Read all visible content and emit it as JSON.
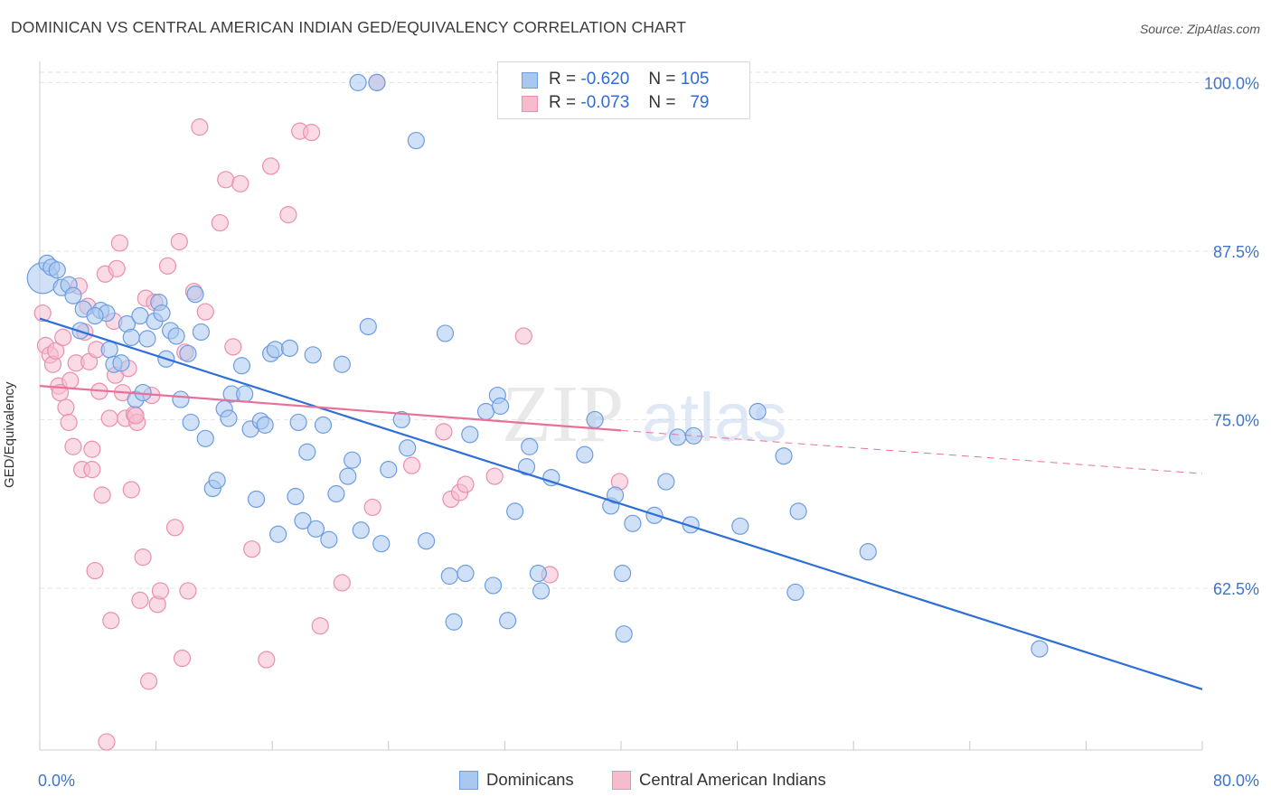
{
  "title": "DOMINICAN VS CENTRAL AMERICAN INDIAN GED/EQUIVALENCY CORRELATION CHART",
  "source": "Source: ZipAtlas.com",
  "watermark": {
    "zip": "ZIP",
    "atlas": "atlas"
  },
  "colors": {
    "dominicans_fill": "#a9c8f0",
    "dominicans_stroke": "#6d9de0",
    "dominicans_line": "#2e6fd6",
    "cai_fill": "#f6bccd",
    "cai_stroke": "#ea8faf",
    "cai_line": "#e8709a",
    "axis_text": "#3f74c8",
    "grid": "#e3e3e3"
  },
  "legend": {
    "rows": [
      {
        "r_label": "R =",
        "r_value": "-0.620",
        "n_label": "N =",
        "n_value": "105"
      },
      {
        "r_label": "R =",
        "r_value": "-0.073",
        "n_label": "N =",
        "n_value": "79"
      }
    ],
    "bottom": [
      "Dominicans",
      "Central American Indians"
    ]
  },
  "chart_data": {
    "type": "scatter",
    "title": "DOMINICAN VS CENTRAL AMERICAN INDIAN GED/EQUIVALENCY CORRELATION CHART",
    "xlabel": "",
    "ylabel": "GED/Equivalency",
    "xlim": [
      0,
      80
    ],
    "ylim": [
      50.5,
      101.3
    ],
    "x_tick_labels": [
      "0.0%",
      "80.0%"
    ],
    "y_ticks": [
      62.5,
      75.0,
      87.5,
      100.0
    ],
    "y_tick_labels": [
      "62.5%",
      "75.0%",
      "87.5%",
      "100.0%"
    ],
    "grid": true,
    "legend_position": "top-center",
    "series": [
      {
        "name": "Dominicans",
        "r": -0.62,
        "n": 105,
        "trend": {
          "x": [
            0,
            80
          ],
          "y": [
            82.5,
            55.0
          ]
        },
        "points": [
          [
            0.2,
            85.5
          ],
          [
            0.5,
            86.6
          ],
          [
            0.8,
            86.3
          ],
          [
            1.2,
            86.1
          ],
          [
            1.5,
            84.8
          ],
          [
            2.0,
            85.0
          ],
          [
            2.3,
            84.2
          ],
          [
            3.0,
            83.2
          ],
          [
            2.8,
            81.6
          ],
          [
            4.2,
            83.1
          ],
          [
            4.6,
            82.9
          ],
          [
            3.8,
            82.7
          ],
          [
            4.8,
            80.2
          ],
          [
            5.1,
            79.1
          ],
          [
            5.6,
            79.2
          ],
          [
            6.0,
            82.1
          ],
          [
            6.3,
            81.1
          ],
          [
            6.6,
            76.5
          ],
          [
            6.9,
            82.7
          ],
          [
            7.1,
            77.0
          ],
          [
            7.4,
            81.0
          ],
          [
            7.9,
            82.3
          ],
          [
            8.2,
            83.7
          ],
          [
            8.4,
            82.9
          ],
          [
            8.7,
            79.5
          ],
          [
            9.0,
            81.6
          ],
          [
            9.4,
            81.2
          ],
          [
            9.7,
            76.5
          ],
          [
            10.2,
            79.9
          ],
          [
            10.4,
            74.8
          ],
          [
            10.7,
            84.3
          ],
          [
            11.1,
            81.5
          ],
          [
            11.4,
            73.6
          ],
          [
            11.9,
            69.9
          ],
          [
            12.2,
            70.5
          ],
          [
            12.7,
            75.8
          ],
          [
            13.0,
            75.1
          ],
          [
            13.2,
            76.9
          ],
          [
            13.9,
            79.0
          ],
          [
            14.1,
            76.9
          ],
          [
            14.5,
            74.3
          ],
          [
            14.9,
            69.1
          ],
          [
            15.2,
            74.9
          ],
          [
            15.5,
            74.6
          ],
          [
            15.9,
            79.9
          ],
          [
            16.2,
            80.2
          ],
          [
            16.4,
            66.5
          ],
          [
            17.2,
            80.3
          ],
          [
            17.6,
            69.3
          ],
          [
            17.8,
            74.8
          ],
          [
            18.1,
            67.5
          ],
          [
            18.4,
            72.6
          ],
          [
            18.8,
            79.8
          ],
          [
            19.0,
            66.9
          ],
          [
            19.5,
            74.6
          ],
          [
            19.9,
            66.1
          ],
          [
            20.4,
            69.5
          ],
          [
            20.8,
            79.1
          ],
          [
            21.2,
            70.8
          ],
          [
            21.5,
            72.0
          ],
          [
            21.9,
            100.0
          ],
          [
            22.1,
            66.8
          ],
          [
            22.6,
            81.9
          ],
          [
            23.2,
            100.0
          ],
          [
            23.5,
            65.8
          ],
          [
            24.0,
            71.3
          ],
          [
            24.9,
            75.0
          ],
          [
            25.3,
            72.9
          ],
          [
            25.9,
            95.7
          ],
          [
            26.6,
            66.0
          ],
          [
            27.9,
            81.4
          ],
          [
            28.2,
            63.4
          ],
          [
            28.5,
            60.0
          ],
          [
            29.3,
            63.6
          ],
          [
            29.6,
            73.9
          ],
          [
            30.7,
            75.6
          ],
          [
            31.2,
            62.7
          ],
          [
            31.5,
            76.8
          ],
          [
            31.7,
            76.0
          ],
          [
            32.2,
            60.1
          ],
          [
            32.7,
            68.2
          ],
          [
            33.5,
            71.5
          ],
          [
            33.7,
            73.0
          ],
          [
            34.3,
            63.6
          ],
          [
            34.5,
            62.3
          ],
          [
            35.2,
            70.7
          ],
          [
            38.2,
            75.0
          ],
          [
            39.3,
            68.6
          ],
          [
            39.6,
            69.4
          ],
          [
            40.1,
            63.6
          ],
          [
            40.2,
            59.1
          ],
          [
            40.8,
            67.3
          ],
          [
            42.3,
            67.9
          ],
          [
            43.1,
            70.4
          ],
          [
            43.9,
            73.7
          ],
          [
            44.8,
            67.2
          ],
          [
            48.2,
            67.1
          ],
          [
            49.4,
            75.6
          ],
          [
            51.2,
            72.3
          ],
          [
            52.0,
            62.2
          ],
          [
            52.2,
            68.2
          ],
          [
            57.0,
            65.2
          ],
          [
            68.8,
            58.0
          ],
          [
            45.0,
            73.8
          ],
          [
            37.5,
            72.4
          ]
        ]
      },
      {
        "name": "Central American Indians",
        "r": -0.073,
        "n": 79,
        "trend": {
          "x": [
            0,
            40
          ],
          "y": [
            77.5,
            74.2
          ]
        },
        "trend_extension": {
          "x": [
            40,
            80
          ],
          "y": [
            74.2,
            71.0
          ]
        },
        "points": [
          [
            0.2,
            82.9
          ],
          [
            0.4,
            80.5
          ],
          [
            0.7,
            79.8
          ],
          [
            0.9,
            79.1
          ],
          [
            1.1,
            80.1
          ],
          [
            1.3,
            77.5
          ],
          [
            1.4,
            77.0
          ],
          [
            1.6,
            81.1
          ],
          [
            1.8,
            75.9
          ],
          [
            2.0,
            74.8
          ],
          [
            2.1,
            77.9
          ],
          [
            2.3,
            73.0
          ],
          [
            2.5,
            79.2
          ],
          [
            2.7,
            84.9
          ],
          [
            2.9,
            71.3
          ],
          [
            3.1,
            81.5
          ],
          [
            3.3,
            83.4
          ],
          [
            3.4,
            79.3
          ],
          [
            3.6,
            71.3
          ],
          [
            3.8,
            63.8
          ],
          [
            3.9,
            80.2
          ],
          [
            4.1,
            77.1
          ],
          [
            4.3,
            69.4
          ],
          [
            4.5,
            85.8
          ],
          [
            4.6,
            51.1
          ],
          [
            4.8,
            75.1
          ],
          [
            4.9,
            60.1
          ],
          [
            5.1,
            82.3
          ],
          [
            5.2,
            78.3
          ],
          [
            5.3,
            86.2
          ],
          [
            5.5,
            88.1
          ],
          [
            5.7,
            77.0
          ],
          [
            5.9,
            75.1
          ],
          [
            6.1,
            78.8
          ],
          [
            6.3,
            69.8
          ],
          [
            6.5,
            75.4
          ],
          [
            6.7,
            74.8
          ],
          [
            6.9,
            61.6
          ],
          [
            7.1,
            64.8
          ],
          [
            7.3,
            84.0
          ],
          [
            7.5,
            55.6
          ],
          [
            7.7,
            76.8
          ],
          [
            7.9,
            83.7
          ],
          [
            8.1,
            61.3
          ],
          [
            8.3,
            62.3
          ],
          [
            8.8,
            86.4
          ],
          [
            9.3,
            67.0
          ],
          [
            9.6,
            88.2
          ],
          [
            9.8,
            57.3
          ],
          [
            10.2,
            62.3
          ],
          [
            10.6,
            84.5
          ],
          [
            11.0,
            96.7
          ],
          [
            11.4,
            83.0
          ],
          [
            12.4,
            89.6
          ],
          [
            12.8,
            92.8
          ],
          [
            13.3,
            80.4
          ],
          [
            13.8,
            92.5
          ],
          [
            14.6,
            65.4
          ],
          [
            15.6,
            57.2
          ],
          [
            15.9,
            93.8
          ],
          [
            17.1,
            90.2
          ],
          [
            17.9,
            96.4
          ],
          [
            18.7,
            96.3
          ],
          [
            19.3,
            59.7
          ],
          [
            20.8,
            62.9
          ],
          [
            22.9,
            68.5
          ],
          [
            23.2,
            100.0
          ],
          [
            25.6,
            71.6
          ],
          [
            27.8,
            74.1
          ],
          [
            28.3,
            69.1
          ],
          [
            28.9,
            69.6
          ],
          [
            29.3,
            70.2
          ],
          [
            31.3,
            70.8
          ],
          [
            33.3,
            81.2
          ],
          [
            35.1,
            63.5
          ],
          [
            39.9,
            70.4
          ],
          [
            6.6,
            75.3
          ],
          [
            3.6,
            72.8
          ],
          [
            10.0,
            80.0
          ]
        ]
      }
    ]
  }
}
